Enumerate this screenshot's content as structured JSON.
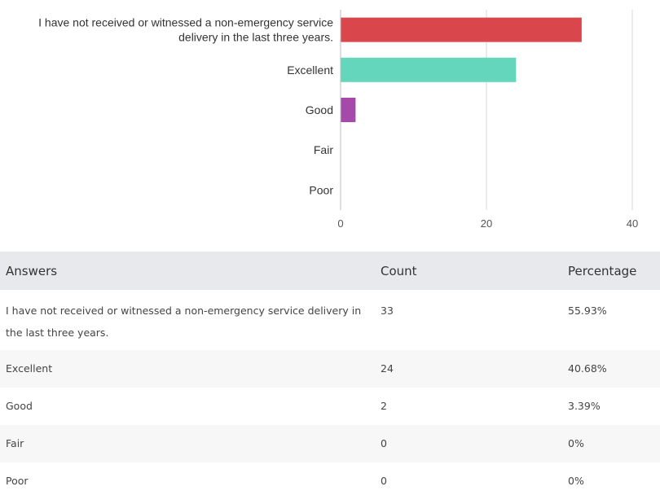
{
  "chart_data": {
    "type": "bar",
    "orientation": "horizontal",
    "categories": [
      [
        "I have not received or witnessed a non-emergency service",
        "delivery in the last three years."
      ],
      [
        "Excellent"
      ],
      [
        "Good"
      ],
      [
        "Fair"
      ],
      [
        "Poor"
      ]
    ],
    "values": [
      33,
      24,
      2,
      0,
      0
    ],
    "colors": [
      "#d9474c",
      "#64d6bc",
      "#a54aab",
      "#cccccc",
      "#cccccc"
    ],
    "xlim": [
      0,
      40
    ],
    "xticks": [
      "0",
      "20",
      "40"
    ],
    "grid": true,
    "legend": "none"
  },
  "table": {
    "headers": [
      "Answers",
      "Count",
      "Percentage"
    ],
    "rows": [
      {
        "answer": "I have not received or witnessed a non-emergency service delivery in the last three years.",
        "count": "33",
        "percentage": "55.93%"
      },
      {
        "answer": "Excellent",
        "count": "24",
        "percentage": "40.68%"
      },
      {
        "answer": "Good",
        "count": "2",
        "percentage": "3.39%"
      },
      {
        "answer": "Fair",
        "count": "0",
        "percentage": "0%"
      },
      {
        "answer": "Poor",
        "count": "0",
        "percentage": "0%"
      }
    ]
  }
}
